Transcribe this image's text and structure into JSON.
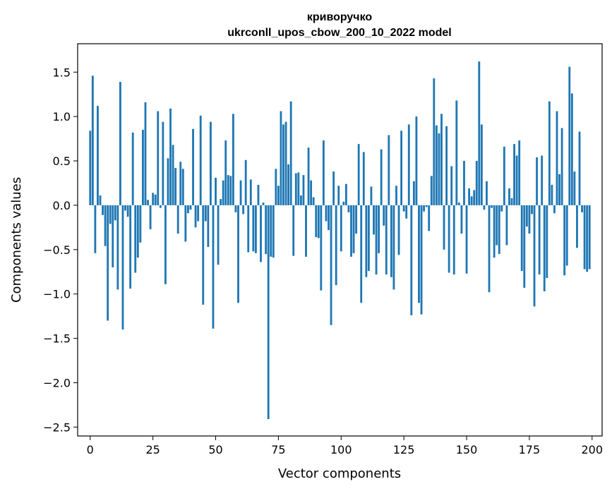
{
  "chart_data": {
    "type": "bar",
    "title": "криворучко",
    "subtitle": "ukrconll_upos_cbow_200_10_2022 model",
    "xlabel": "Vector components",
    "ylabel": "Components values",
    "xlim": [
      -5,
      204
    ],
    "ylim": [
      -2.6,
      1.82
    ],
    "xticks": [
      0,
      25,
      50,
      75,
      100,
      125,
      150,
      175,
      200
    ],
    "yticks": [
      -2.5,
      -2.0,
      -1.5,
      -1.0,
      -0.5,
      0.0,
      0.5,
      1.0,
      1.5
    ],
    "ytick_labels": [
      "−2.5",
      "−2.0",
      "−1.5",
      "−1.0",
      "−0.5",
      "0.0",
      "0.5",
      "1.0",
      "1.5"
    ],
    "bar_color": "#1f77b4",
    "grid": false,
    "series": [
      {
        "name": "components",
        "values": [
          0.84,
          1.46,
          -0.54,
          1.12,
          0.11,
          -0.11,
          -0.46,
          -1.3,
          -0.21,
          -0.7,
          -0.17,
          -0.95,
          1.39,
          -1.4,
          -0.06,
          -0.13,
          -0.94,
          0.82,
          -0.76,
          -0.59,
          -0.42,
          0.85,
          1.16,
          0.06,
          -0.27,
          0.14,
          0.12,
          1.06,
          -0.03,
          0.94,
          -0.89,
          0.53,
          1.09,
          0.68,
          0.42,
          -0.32,
          0.49,
          0.41,
          -0.41,
          -0.09,
          -0.05,
          0.86,
          -0.25,
          -0.18,
          1.01,
          -1.12,
          -0.18,
          -0.47,
          0.94,
          -1.39,
          0.31,
          -0.67,
          0.07,
          0.28,
          0.73,
          0.34,
          0.33,
          1.03,
          -0.08,
          -1.1,
          0.28,
          -0.1,
          0.51,
          -0.53,
          0.29,
          -0.52,
          -0.54,
          0.23,
          -0.64,
          0.03,
          -0.55,
          -2.41,
          -0.58,
          -0.59,
          0.41,
          0.22,
          1.06,
          0.91,
          0.94,
          0.46,
          1.17,
          -0.57,
          0.36,
          0.37,
          0.11,
          0.34,
          -0.58,
          0.65,
          0.28,
          0.09,
          -0.36,
          -0.37,
          -0.96,
          0.73,
          -0.18,
          -0.28,
          -1.35,
          0.38,
          -0.9,
          0.22,
          -0.52,
          0.04,
          0.24,
          -0.08,
          -0.58,
          -0.54,
          -0.32,
          0.69,
          -1.1,
          0.6,
          -0.81,
          -0.74,
          0.21,
          -0.33,
          -0.78,
          -0.54,
          0.63,
          -0.23,
          -0.78,
          0.79,
          -0.81,
          -0.95,
          0.22,
          -0.56,
          0.84,
          -0.07,
          -0.15,
          0.91,
          -1.24,
          0.27,
          1.0,
          -1.1,
          -1.23,
          -0.07,
          -0.02,
          -0.29,
          0.33,
          1.43,
          0.9,
          0.81,
          1.03,
          -0.5,
          0.89,
          -0.76,
          0.44,
          -0.78,
          1.18,
          0.03,
          -0.32,
          0.5,
          -0.77,
          0.19,
          0.1,
          0.17,
          0.5,
          1.62,
          0.91,
          -0.05,
          0.27,
          -0.98,
          -0.03,
          -0.59,
          -0.45,
          -0.55,
          -0.07,
          0.66,
          -0.45,
          0.19,
          0.08,
          0.69,
          0.56,
          0.73,
          -0.74,
          -0.93,
          -0.24,
          -0.32,
          -0.1,
          -1.14,
          0.54,
          -0.78,
          0.56,
          -0.97,
          -0.82,
          1.17,
          0.23,
          -0.09,
          1.06,
          0.35,
          0.87,
          -0.79,
          -0.68,
          1.56,
          1.26,
          0.38,
          -0.48,
          0.83,
          -0.08,
          -0.72,
          -0.75,
          -0.72
        ]
      }
    ]
  }
}
